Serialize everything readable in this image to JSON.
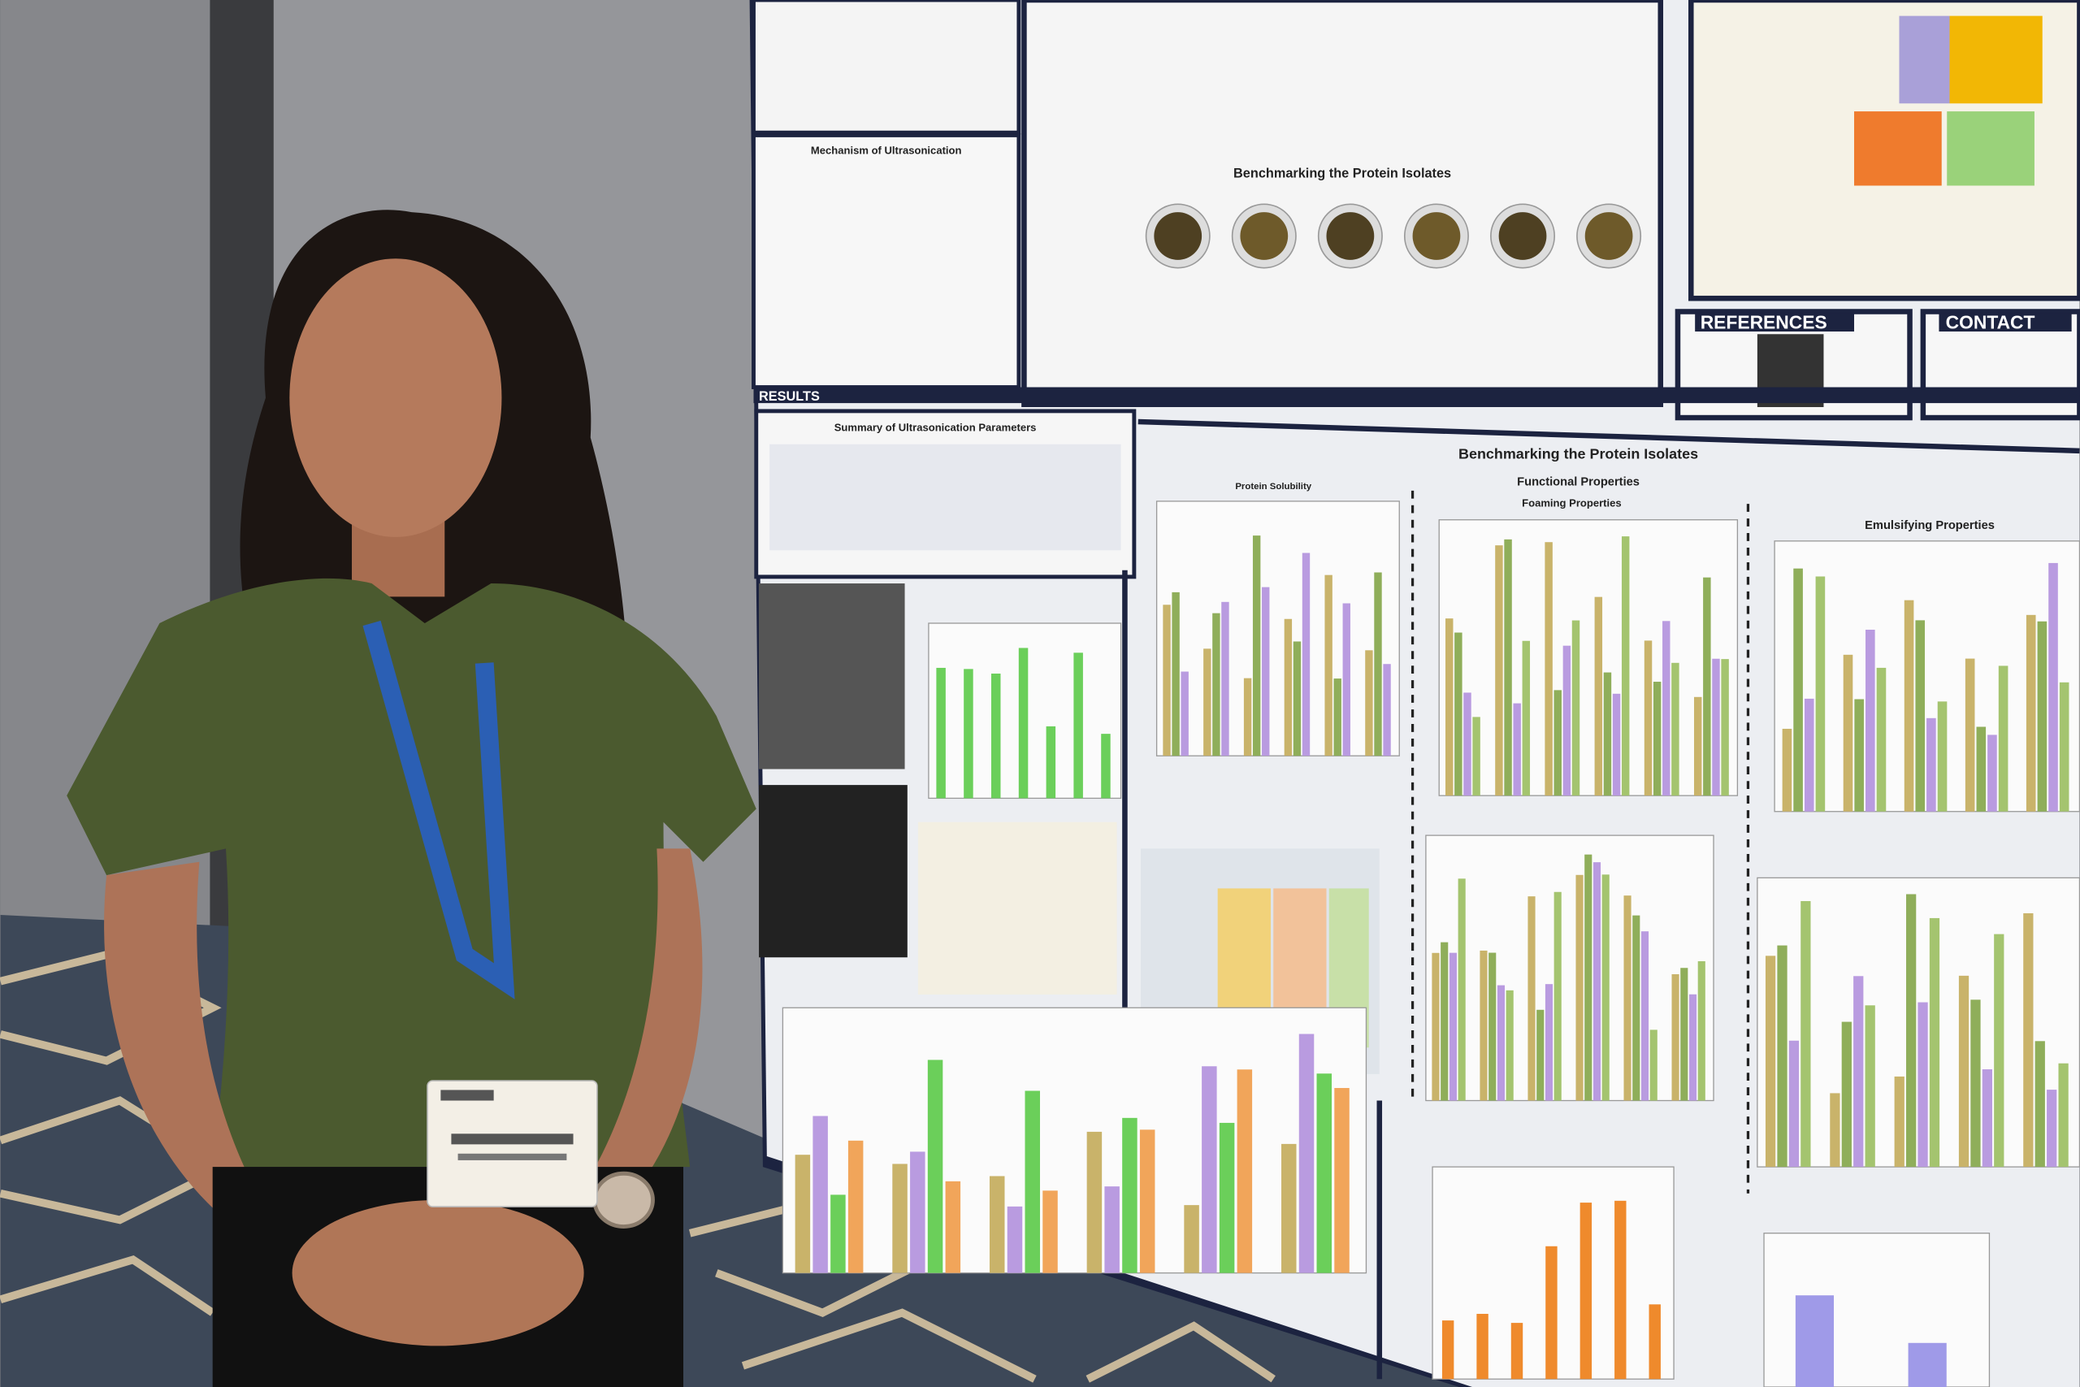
{
  "poster": {
    "results": "RESULTS",
    "references": "REFERENCES",
    "contact": "CONTACT",
    "mechanism": "Mechanism of Ultrasonication",
    "summary": "Summary of Ultrasonication Parameters",
    "benchmark_top": "Benchmarking the Protein Isolates",
    "benchmark": "Benchmarking the Protein Isolates",
    "functional": "Functional Properties",
    "foaming": "Foaming Properties",
    "emulsifying": "Emulsifying Properties",
    "solubility": "Protein Solubility"
  }
}
